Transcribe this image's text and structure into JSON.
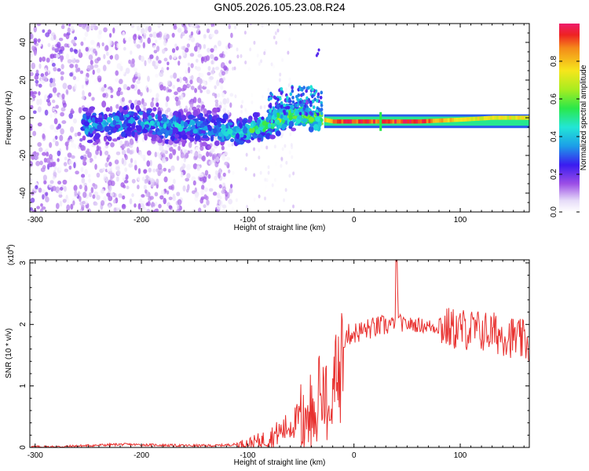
{
  "title": "GN05.2026.105.23.08.R24",
  "colors": {
    "snr_line": "#e8312f",
    "spec_low": "#c8b2ee",
    "spec_mid": "#7a1de0",
    "spec_high": "#e8222d",
    "axis": "#000000"
  },
  "chart_data": [
    {
      "type": "heatmap",
      "name": "spectrogram",
      "xlabel": "Height of straight line (km)",
      "ylabel": "Frequency (Hz)",
      "xlim": [
        -305,
        165
      ],
      "ylim": [
        -50,
        50
      ],
      "xticks": [
        -300,
        -200,
        -100,
        0,
        100
      ],
      "yticks": [
        -40,
        -20,
        0,
        20,
        40
      ],
      "xtick_labels": [
        "-300",
        "-200",
        "-100",
        "0",
        "100"
      ],
      "ytick_labels": [
        "-40",
        "-20",
        "0",
        "20",
        "40"
      ],
      "colorbar": {
        "label": "Normalized spectral amplitude",
        "range": [
          0,
          1
        ],
        "ticks": [
          0.0,
          0.2,
          0.4,
          0.6,
          0.8
        ],
        "tick_labels": [
          "0.0",
          "0.2",
          "0.4",
          "0.6",
          "0.8"
        ]
      },
      "ridge": [
        {
          "x": -250,
          "f": -4,
          "amp": 0.45
        },
        {
          "x": -230,
          "f": -3,
          "amp": 0.45
        },
        {
          "x": -210,
          "f": -2,
          "amp": 0.45
        },
        {
          "x": -190,
          "f": -3,
          "amp": 0.45
        },
        {
          "x": -170,
          "f": -5,
          "amp": 0.45
        },
        {
          "x": -150,
          "f": -4,
          "amp": 0.45
        },
        {
          "x": -130,
          "f": -6,
          "amp": 0.45
        },
        {
          "x": -115,
          "f": -8,
          "amp": 0.52
        },
        {
          "x": -100,
          "f": -7,
          "amp": 0.58
        },
        {
          "x": -90,
          "f": -5,
          "amp": 0.62
        },
        {
          "x": -80,
          "f": -3,
          "amp": 0.66
        },
        {
          "x": -70,
          "f": -1,
          "amp": 0.68
        },
        {
          "x": -60,
          "f": 1,
          "amp": 0.7
        },
        {
          "x": -50,
          "f": 2,
          "amp": 0.7
        },
        {
          "x": -40,
          "f": 1,
          "amp": 0.7
        },
        {
          "x": -30,
          "f": -1,
          "amp": 0.75
        },
        {
          "x": -20,
          "f": -2,
          "amp": 0.9
        },
        {
          "x": 0,
          "f": -2,
          "amp": 0.95
        },
        {
          "x": 25,
          "f": -2,
          "amp": 0.95
        },
        {
          "x": 60,
          "f": -2,
          "amp": 0.95
        },
        {
          "x": 100,
          "f": -1,
          "amp": 0.75
        },
        {
          "x": 130,
          "f": 0,
          "amp": 0.75
        },
        {
          "x": 165,
          "f": 0,
          "amp": 0.75
        }
      ]
    },
    {
      "type": "line",
      "name": "snr",
      "xlabel": "Height of straight line (km)",
      "ylabel": "SNR (10 * v/v)",
      "scale_label": "(x10",
      "scale_exp": "4",
      "scale_close": ")",
      "xlim": [
        -305,
        165
      ],
      "ylim": [
        0,
        3.05
      ],
      "xticks": [
        -300,
        -200,
        -100,
        0,
        100
      ],
      "yticks": [
        0,
        1,
        2,
        3
      ],
      "xtick_labels": [
        "-300",
        "-200",
        "-100",
        "0",
        "100"
      ],
      "ytick_labels": [
        "0",
        "1",
        "2",
        "3"
      ],
      "series": [
        {
          "name": "SNR",
          "x": [
            -305,
            -280,
            -250,
            -220,
            -190,
            -160,
            -130,
            -110,
            -95,
            -85,
            -75,
            -65,
            -55,
            -48,
            -42,
            -36,
            -32,
            -27,
            -22,
            -17,
            -12,
            -8,
            -2,
            5,
            12,
            20,
            28,
            35,
            39,
            40,
            42,
            45,
            55,
            65,
            75,
            85,
            95,
            105,
            115,
            125,
            135,
            145,
            155,
            165
          ],
          "y": [
            0.01,
            0.01,
            0.03,
            0.05,
            0.04,
            0.03,
            0.03,
            0.05,
            0.08,
            0.12,
            0.2,
            0.3,
            0.42,
            0.52,
            0.62,
            0.75,
            0.9,
            1.05,
            1.15,
            1.3,
            1.6,
            1.82,
            1.85,
            1.88,
            1.92,
            1.95,
            1.98,
            2.0,
            2.05,
            3.05,
            2.1,
            2.0,
            2.0,
            1.98,
            1.96,
            1.95,
            1.92,
            1.92,
            1.9,
            1.88,
            1.85,
            1.82,
            1.75,
            1.7
          ]
        }
      ]
    }
  ]
}
